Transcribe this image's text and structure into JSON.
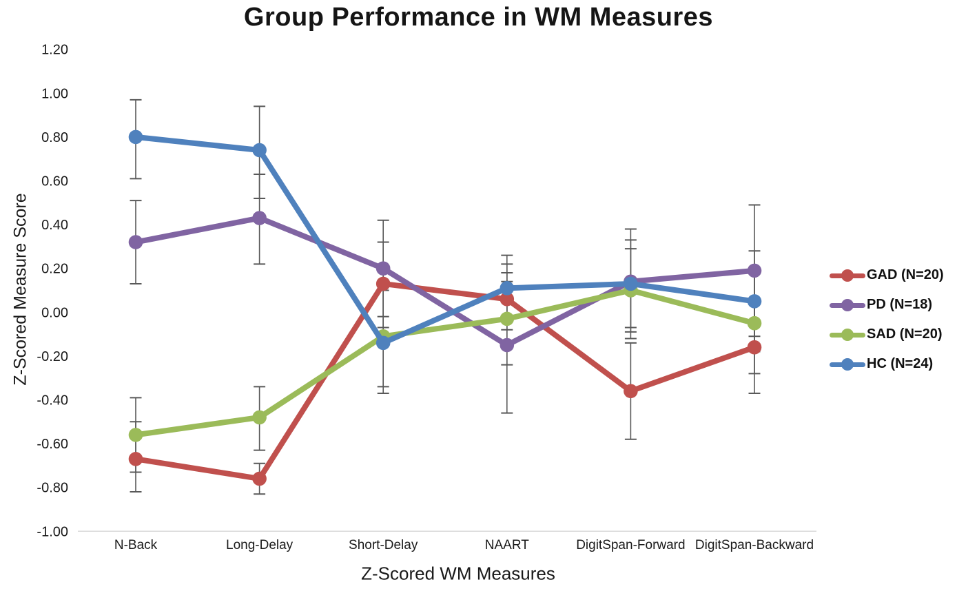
{
  "chart_data": {
    "type": "line",
    "title": "Group Performance in WM Measures",
    "xlabel": "Z-Scored WM Measures",
    "ylabel": "Z-Scored Measure Score",
    "categories": [
      "N-Back",
      "Long-Delay",
      "Short-Delay",
      "NAART",
      "DigitSpan-Forward",
      "DigitSpan-Backward"
    ],
    "ylim": [
      -1.0,
      1.2
    ],
    "ytick_step": 0.2,
    "grid": false,
    "legend_position": "right",
    "error_bars": true,
    "error_bar_color": "#595959",
    "axis_line_color": "#d9d9d9",
    "tick_label_color": "#1a1a1a",
    "series": [
      {
        "name": "GAD (N=20)",
        "color": "#C0504D",
        "values": [
          -0.67,
          -0.76,
          0.13,
          0.06,
          -0.36,
          -0.16
        ],
        "error_low": [
          -0.82,
          -0.83,
          -0.07,
          -0.08,
          -0.58,
          -0.37
        ],
        "error_high": [
          -0.5,
          -0.69,
          0.32,
          0.22,
          -0.14,
          0.05
        ]
      },
      {
        "name": "PD (N=18)",
        "color": "#8064A2",
        "values": [
          0.32,
          0.43,
          0.2,
          -0.15,
          0.14,
          0.19
        ],
        "error_low": [
          0.13,
          0.22,
          -0.02,
          -0.46,
          -0.12,
          -0.11
        ],
        "error_high": [
          0.51,
          0.63,
          0.42,
          0.14,
          0.38,
          0.49
        ]
      },
      {
        "name": "SAD (N=20)",
        "color": "#9BBB59",
        "values": [
          -0.56,
          -0.48,
          -0.11,
          -0.03,
          0.1,
          -0.05
        ],
        "error_low": [
          -0.73,
          -0.63,
          -0.34,
          -0.24,
          -0.07,
          -0.28
        ],
        "error_high": [
          -0.39,
          -0.34,
          0.12,
          0.18,
          0.29,
          0.18
        ]
      },
      {
        "name": "HC (N=24)",
        "color": "#4F81BD",
        "values": [
          0.8,
          0.74,
          -0.14,
          0.11,
          0.13,
          0.05
        ],
        "error_low": [
          0.61,
          0.52,
          -0.37,
          -0.04,
          -0.09,
          -0.18
        ],
        "error_high": [
          0.97,
          0.94,
          0.1,
          0.26,
          0.33,
          0.28
        ]
      }
    ]
  }
}
